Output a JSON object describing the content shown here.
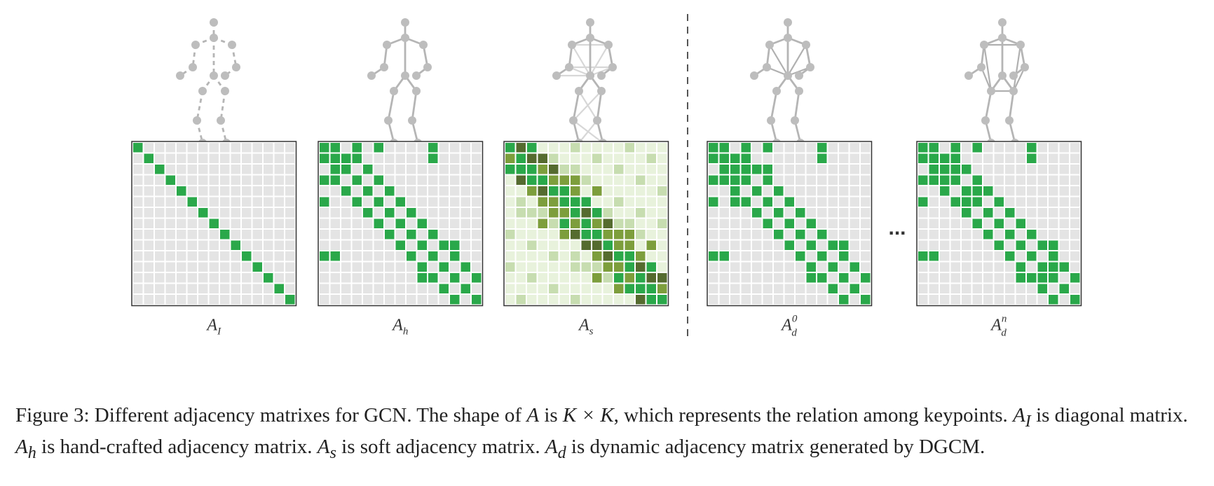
{
  "figure": {
    "panels": [
      {
        "id": "identity",
        "label_base": "A",
        "label_sub": "I",
        "label_sup": ""
      },
      {
        "id": "hand",
        "label_base": "A",
        "label_sub": "h",
        "label_sup": ""
      },
      {
        "id": "soft",
        "label_base": "A",
        "label_sub": "s",
        "label_sup": ""
      },
      {
        "id": "dyn0",
        "label_base": "A",
        "label_sub": "d",
        "label_sup": "0"
      },
      {
        "id": "dynn",
        "label_base": "A",
        "label_sub": "d",
        "label_sup": "n"
      }
    ],
    "ellipsis": "...",
    "colors": {
      "grid_off": "#e4e4e4",
      "grid_on": "#2aa84a",
      "soft_dark": "#556b2f",
      "soft_mid": "#7d9e3c",
      "soft_light": "#c7ddb0",
      "soft_pale": "#e8f2dc",
      "skeleton": "#bdbdbd",
      "border": "#333333"
    }
  },
  "caption": {
    "line1_text": "Figure 3: Different adjacency matrixes for GCN. The shape of ",
    "math_A": "A",
    "line1_mid": " is ",
    "math_KxK": "K × K",
    "line1_end": ", which represents the relation among keypoints. ",
    "math_AI": "A",
    "sub_I": "I",
    "line2_a": " is diagonal matrix. ",
    "sub_h": "h",
    "line2_b": " is hand-crafted adjacency matrix. ",
    "sub_s": "s",
    "line2_c": " is soft adjacency matrix. ",
    "sub_d": "d",
    "line2_d": " is dynamic adjacency matrix generated by DGCM."
  }
}
